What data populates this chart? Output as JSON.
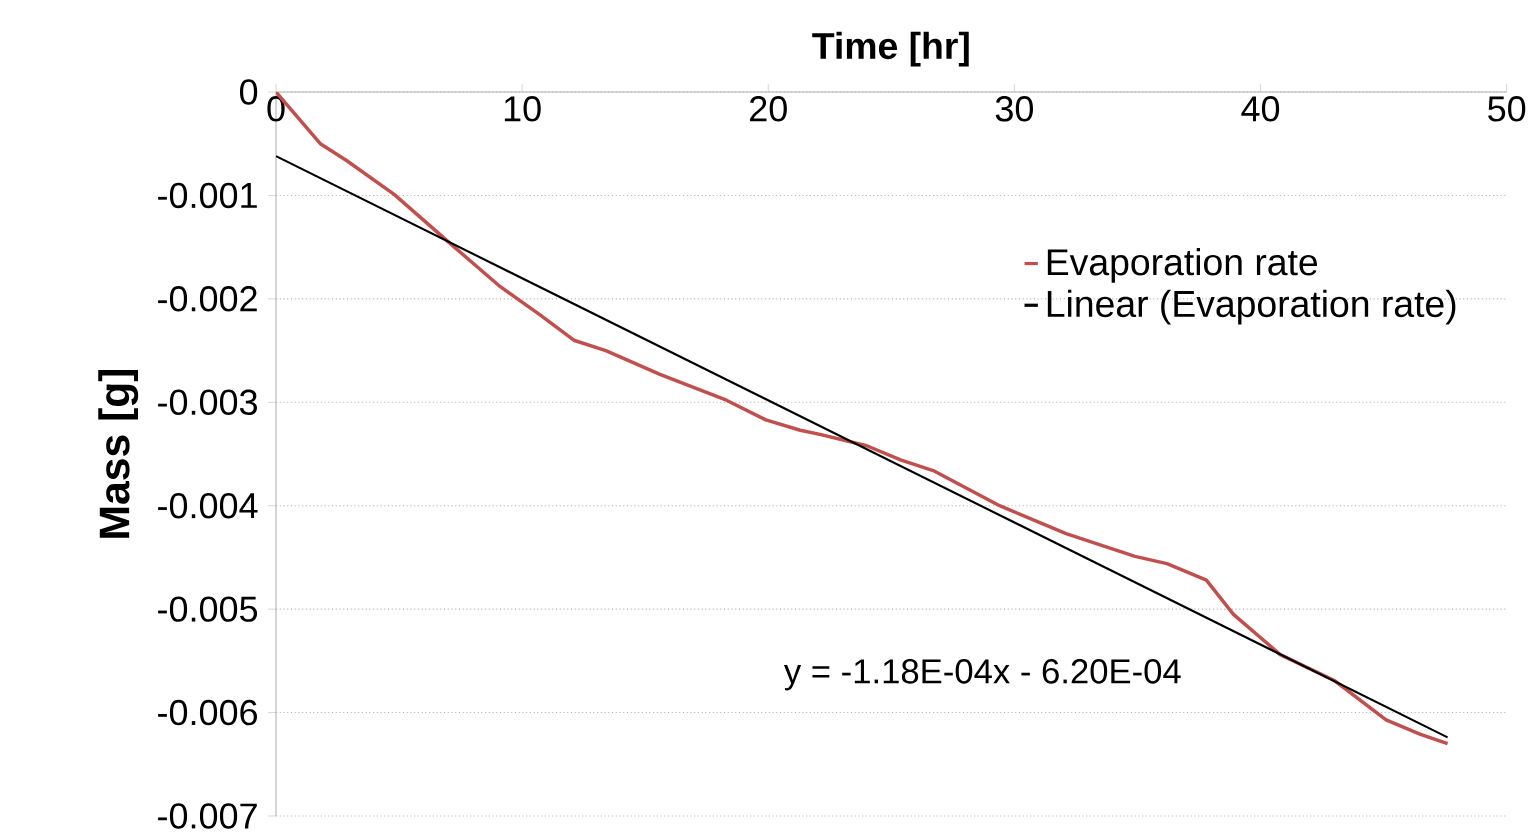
{
  "chart_data": {
    "type": "line",
    "xlabel": "Time [hr]",
    "ylabel": "Mass [g]",
    "xlim": [
      0,
      50
    ],
    "xticks": [
      0,
      10,
      20,
      30,
      40,
      50
    ],
    "ylim": [
      -0.007,
      0
    ],
    "yticks": [
      -0.007,
      -0.006,
      -0.005,
      -0.004,
      -0.003,
      -0.002,
      -0.001,
      0
    ],
    "grid": "y",
    "legend": "right",
    "marker": "none",
    "line_style": "solid",
    "annotations": [
      "y = -1.18E-04x - 6.20E-04"
    ],
    "series": [
      {
        "name": "Evaporation rate",
        "color": "#c0504d",
        "x": [
          0,
          1.8,
          2.85,
          4.8,
          7.2,
          9.1,
          10.7,
          12.1,
          13.4,
          15.6,
          18.3,
          19.9,
          21.3,
          22.1,
          24.0,
          25.4,
          26.7,
          29.4,
          32.1,
          34.9,
          36.2,
          37.8,
          38.9,
          40.8,
          43.0,
          45.1,
          46.5,
          47.6
        ],
        "values": [
          0,
          -0.0005,
          -0.00066,
          -0.00099,
          -0.00149,
          -0.00188,
          -0.00215,
          -0.0024,
          -0.0025,
          -0.00273,
          -0.00298,
          -0.00317,
          -0.00327,
          -0.00331,
          -0.00342,
          -0.00356,
          -0.00366,
          -0.004,
          -0.00427,
          -0.00449,
          -0.00456,
          -0.00472,
          -0.00505,
          -0.00544,
          -0.00569,
          -0.00607,
          -0.00621,
          -0.0063
        ]
      },
      {
        "name": "Linear (Evaporation rate)",
        "color": "#000000",
        "type": "line",
        "x": [
          0,
          47.6
        ],
        "values": [
          -0.00062,
          -0.00624
        ]
      }
    ]
  }
}
